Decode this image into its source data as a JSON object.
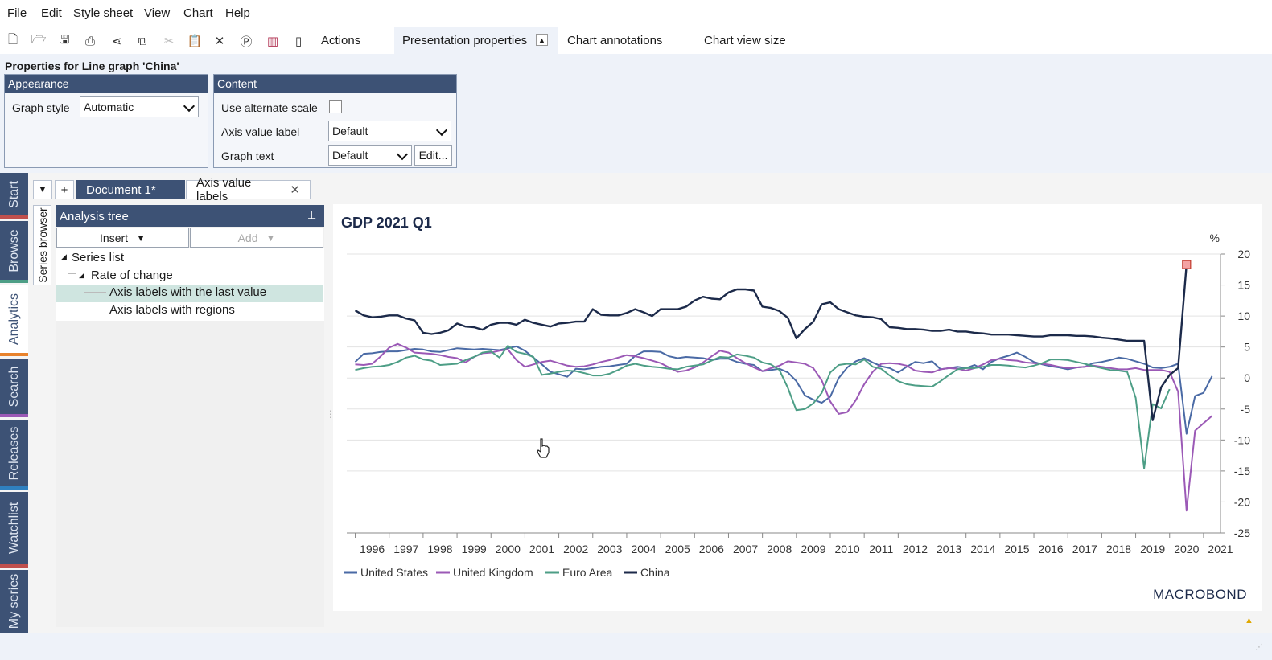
{
  "menu": [
    "File",
    "Edit",
    "Style sheet",
    "View",
    "Chart",
    "Help"
  ],
  "toolbar": {
    "icons": [
      "new-document-icon",
      "open-folder-icon",
      "save-icon",
      "print-icon",
      "share-icon",
      "copy-icon",
      "cut-icon",
      "paste-icon",
      "delete-icon",
      "presentation-p-icon",
      "chart-bars-icon",
      "view-size-icon"
    ],
    "tabs": [
      "Actions",
      "Presentation properties",
      "Chart annotations",
      "Chart view size"
    ]
  },
  "properties": {
    "title": "Properties for Line graph 'China'",
    "appearance": {
      "header": "Appearance",
      "graph_style_label": "Graph style",
      "graph_style_value": "Automatic"
    },
    "content": {
      "header": "Content",
      "alt_scale_label": "Use alternate scale",
      "axis_value_label": "Axis value label",
      "axis_value_value": "Default",
      "graph_text_label": "Graph text",
      "graph_text_value": "Default",
      "edit_button": "Edit..."
    }
  },
  "sidebar": [
    "Start",
    "Browse",
    "Analytics",
    "Search",
    "Releases",
    "Watchlist",
    "My series"
  ],
  "series_browser": "Series browser",
  "doc_tabs": {
    "dropdown": "▼",
    "add": "+",
    "tabs": [
      "Document 1*",
      "Axis value labels"
    ],
    "close": "✕"
  },
  "tree": {
    "header": "Analysis tree",
    "insert": "Insert",
    "add": "Add",
    "items": [
      {
        "label": "Series list",
        "level": 0,
        "arrow": "◢"
      },
      {
        "label": "Rate of change",
        "level": 1,
        "arrow": "◢"
      },
      {
        "label": "Axis labels with the last value",
        "level": 2,
        "selected": true
      },
      {
        "label": "Axis labels with regions",
        "level": 2
      }
    ]
  },
  "chart": {
    "logo": "MACROBOND"
  },
  "chart_data": {
    "type": "line",
    "title": "GDP 2021 Q1",
    "ylabel": "%",
    "ylim": [
      -25,
      20
    ],
    "yticks": [
      20,
      15,
      10,
      5,
      0,
      -5,
      -10,
      -15,
      -20,
      -25
    ],
    "xlim": [
      1995.75,
      2021.5
    ],
    "xticks": [
      "1996",
      "1997",
      "1998",
      "1999",
      "2000",
      "2001",
      "2002",
      "2003",
      "2004",
      "2005",
      "2006",
      "2007",
      "2008",
      "2009",
      "2010",
      "2011",
      "2012",
      "2013",
      "2014",
      "2015",
      "2016",
      "2017",
      "2018",
      "2019",
      "2020",
      "2021"
    ],
    "legend_position": "bottom-left",
    "grid": true,
    "series": [
      {
        "name": "United States",
        "color": "#4a6aa5",
        "x_start": 1996.0,
        "x_step": 0.25,
        "values": [
          2.6,
          3.9,
          4.0,
          4.2,
          4.3,
          4.3,
          4.5,
          4.7,
          4.6,
          4.3,
          4.2,
          4.5,
          4.8,
          4.7,
          4.6,
          4.7,
          4.6,
          4.5,
          4.8,
          5.1,
          4.4,
          3.3,
          2.2,
          1.0,
          0.6,
          0.2,
          1.5,
          1.4,
          1.6,
          1.8,
          1.9,
          2.1,
          2.3,
          3.6,
          4.3,
          4.3,
          4.2,
          3.5,
          3.2,
          3.4,
          3.3,
          3.2,
          2.9,
          3.1,
          3.1,
          2.6,
          2.3,
          2.1,
          1.1,
          1.3,
          1.5,
          0.9,
          -0.5,
          -2.8,
          -3.5,
          -4.0,
          -3.0,
          0.0,
          1.7,
          2.7,
          3.2,
          2.5,
          1.9,
          1.6,
          0.9,
          1.8,
          2.6,
          2.4,
          2.7,
          1.4,
          1.6,
          1.8,
          1.6,
          2.1,
          1.4,
          2.6,
          3.2,
          3.6,
          4.1,
          3.4,
          2.6,
          2.2,
          1.9,
          1.7,
          1.4,
          1.7,
          1.8,
          2.4,
          2.6,
          2.9,
          3.3,
          3.1,
          2.7,
          2.3,
          1.7,
          1.6,
          1.8,
          2.3,
          -9.0,
          -2.9,
          -2.4,
          0.3
        ]
      },
      {
        "name": "United Kingdom",
        "color": "#9b59b6",
        "x_start": 1996.0,
        "x_step": 0.25,
        "values": [
          2.2,
          2.1,
          2.3,
          3.5,
          4.9,
          5.5,
          4.9,
          4.1,
          4.0,
          3.9,
          3.7,
          3.4,
          3.2,
          2.5,
          3.4,
          4.0,
          4.1,
          4.4,
          4.6,
          2.9,
          1.8,
          2.2,
          2.6,
          2.8,
          2.4,
          2.0,
          1.8,
          1.9,
          2.2,
          2.6,
          2.9,
          3.3,
          3.7,
          3.5,
          3.2,
          2.8,
          2.4,
          1.7,
          1.0,
          1.2,
          1.7,
          2.5,
          3.5,
          4.4,
          4.1,
          3.2,
          2.4,
          1.7,
          1.1,
          1.6,
          2.0,
          2.7,
          2.5,
          2.3,
          1.6,
          -0.4,
          -3.8,
          -5.8,
          -5.5,
          -3.6,
          -1.0,
          1.0,
          2.3,
          2.4,
          2.3,
          2.0,
          1.2,
          1.0,
          0.9,
          1.4,
          1.6,
          1.5,
          1.2,
          1.6,
          2.2,
          2.9,
          3.1,
          2.9,
          2.8,
          2.5,
          2.4,
          2.3,
          2.1,
          1.8,
          1.6,
          1.7,
          1.8,
          2.0,
          1.8,
          1.6,
          1.4,
          1.4,
          1.6,
          1.3,
          1.3,
          1.3,
          1.0,
          -2.2,
          -21.4,
          -8.5,
          -7.3,
          -6.1
        ]
      },
      {
        "name": "Euro Area",
        "color": "#4d9e86",
        "x_start": 1996.0,
        "x_step": 0.25,
        "values": [
          1.3,
          1.6,
          1.8,
          1.9,
          2.1,
          2.6,
          3.3,
          3.6,
          3.0,
          2.8,
          2.1,
          2.2,
          2.3,
          2.9,
          3.4,
          4.1,
          4.3,
          3.3,
          5.2,
          4.2,
          3.9,
          3.4,
          0.5,
          0.7,
          1.0,
          1.2,
          1.1,
          0.8,
          0.4,
          0.4,
          0.7,
          1.3,
          2.0,
          2.3,
          2.0,
          1.8,
          1.7,
          1.5,
          1.4,
          1.8,
          2.0,
          2.2,
          2.8,
          3.4,
          3.3,
          3.8,
          3.6,
          3.3,
          2.5,
          2.2,
          1.3,
          -1.6,
          -5.2,
          -5.0,
          -4.1,
          -2.4,
          0.9,
          2.1,
          2.3,
          2.2,
          3.0,
          1.8,
          1.5,
          0.4,
          -0.5,
          -1.0,
          -1.2,
          -1.3,
          -1.4,
          -0.5,
          0.5,
          1.4,
          1.6,
          1.6,
          1.8,
          2.1,
          2.1,
          2.0,
          1.8,
          1.7,
          2.0,
          2.4,
          3.0,
          3.0,
          2.9,
          2.6,
          2.3,
          1.9,
          1.6,
          1.3,
          1.2,
          1.0,
          -3.2,
          -14.6,
          -4.2,
          -4.9,
          -1.8
        ]
      },
      {
        "name": "China",
        "color": "#1c2a4a",
        "x_start": 1996.0,
        "x_step": 0.25,
        "values": [
          10.9,
          10.1,
          9.8,
          9.9,
          10.1,
          10.1,
          9.6,
          9.3,
          7.3,
          7.1,
          7.3,
          7.7,
          8.8,
          8.3,
          8.2,
          7.8,
          8.6,
          8.9,
          8.9,
          8.6,
          9.4,
          8.9,
          8.6,
          8.3,
          8.8,
          8.9,
          9.1,
          9.1,
          11.1,
          10.2,
          10.1,
          10.1,
          10.5,
          11.1,
          10.6,
          10.0,
          11.1,
          11.1,
          11.1,
          11.5,
          12.5,
          13.1,
          12.8,
          12.7,
          13.8,
          14.3,
          14.3,
          14.1,
          11.5,
          11.3,
          10.8,
          9.7,
          6.4,
          7.9,
          9.1,
          11.9,
          12.2,
          11.1,
          10.6,
          10.1,
          9.9,
          9.8,
          9.5,
          8.2,
          8.1,
          7.9,
          7.9,
          7.8,
          7.6,
          7.6,
          7.8,
          7.5,
          7.5,
          7.3,
          7.2,
          7.0,
          7.0,
          7.0,
          6.9,
          6.8,
          6.7,
          6.7,
          6.9,
          6.9,
          6.9,
          6.8,
          6.8,
          6.7,
          6.5,
          6.4,
          6.2,
          6.0,
          6.0,
          6.0,
          -6.8,
          -1.5,
          0.5,
          1.6,
          18.3
        ]
      }
    ]
  }
}
